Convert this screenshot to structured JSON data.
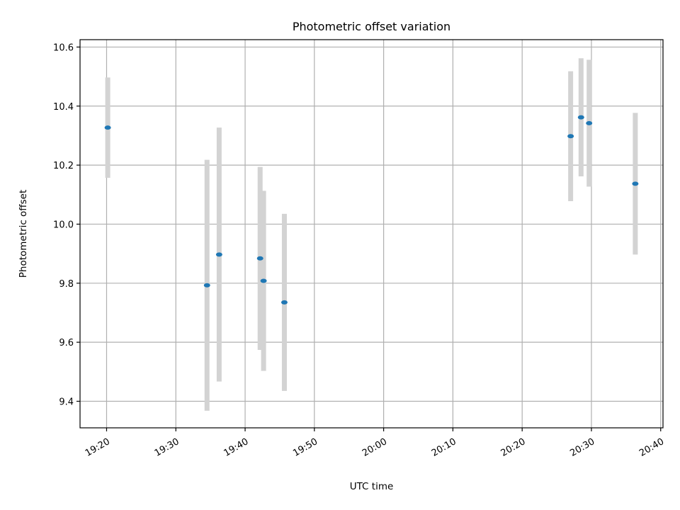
{
  "chart_data": {
    "type": "scatter",
    "title": "Photometric offset variation",
    "xlabel": "UTC time",
    "ylabel": "Photometric offset",
    "xlim": [
      "19:16:10",
      "20:40:20"
    ],
    "ylim": [
      9.31,
      10.625
    ],
    "x_ticks": [
      "19:20",
      "19:30",
      "19:40",
      "19:50",
      "20:00",
      "20:10",
      "20:20",
      "20:30",
      "20:40"
    ],
    "y_ticks": [
      "9.4",
      "9.6",
      "9.8",
      "10.0",
      "10.2",
      "10.4",
      "10.6"
    ],
    "grid": true,
    "series": [
      {
        "points": [
          {
            "x": "19:20:10",
            "y": 10.327,
            "err": 0.17
          },
          {
            "x": "19:34:30",
            "y": 9.793,
            "err": 0.425
          },
          {
            "x": "19:36:15",
            "y": 9.897,
            "err": 0.43
          },
          {
            "x": "19:42:10",
            "y": 9.884,
            "err": 0.31
          },
          {
            "x": "19:42:40",
            "y": 9.808,
            "err": 0.305
          },
          {
            "x": "19:45:40",
            "y": 9.735,
            "err": 0.3
          },
          {
            "x": "20:27:00",
            "y": 10.298,
            "err": 0.22
          },
          {
            "x": "20:28:30",
            "y": 10.362,
            "err": 0.2
          },
          {
            "x": "20:29:40",
            "y": 10.342,
            "err": 0.215
          },
          {
            "x": "20:36:20",
            "y": 10.137,
            "err": 0.24
          }
        ]
      }
    ],
    "colors": {
      "marker": "#1f77b4",
      "errorbar": "#d3d3d3",
      "grid": "#b0b0b0",
      "axes": "#000000"
    }
  }
}
